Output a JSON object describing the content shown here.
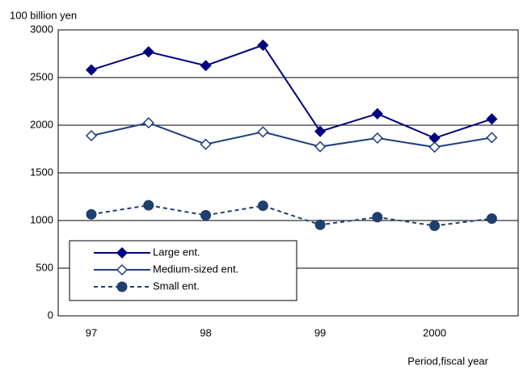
{
  "chart_data": {
    "type": "line",
    "y_label": "100 billion yen",
    "x_label": "Period,fiscal year",
    "categories": [
      "97",
      null,
      "98",
      null,
      "99",
      null,
      "2000",
      null
    ],
    "series": [
      {
        "name": "Large ent.",
        "color": "#000080",
        "marker": "diamond-filled",
        "dashed": false,
        "values": [
          2580,
          2770,
          2625,
          2840,
          1935,
          2120,
          1865,
          2065
        ]
      },
      {
        "name": "Medium-sized ent.",
        "color": "#1f3f7f",
        "marker": "diamond-open",
        "dashed": false,
        "values": [
          1890,
          2025,
          1800,
          1930,
          1775,
          1865,
          1770,
          1870
        ]
      },
      {
        "name": "Small ent.",
        "color": "#1f3f6f",
        "marker": "circle-filled",
        "dashed": true,
        "values": [
          1065,
          1160,
          1055,
          1155,
          955,
          1035,
          945,
          1020
        ]
      }
    ],
    "ylim": [
      0,
      3000
    ],
    "yticks": [
      0,
      500,
      1000,
      1500,
      2000,
      2500,
      3000
    ],
    "grid": true,
    "legend": "lower-left"
  }
}
